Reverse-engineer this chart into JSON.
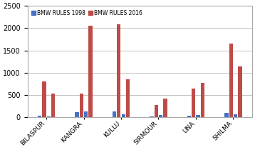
{
  "categories": [
    "BILASPUR",
    "KANGRA",
    "KULLU",
    "SIRMOUR",
    "UNA",
    "SHILMA"
  ],
  "bmw_1998_1": [
    35,
    120,
    130,
    20,
    35,
    100
  ],
  "bmw_2016_1": [
    800,
    530,
    2090,
    280,
    650,
    1650
  ],
  "bmw_1998_2": [
    20,
    130,
    60,
    45,
    55,
    65
  ],
  "bmw_2016_2": [
    530,
    2060,
    860,
    420,
    780,
    1140
  ],
  "color_1998": "#4472C4",
  "color_2016": "#BE4B48",
  "legend_1998": "BMW RULES 1998",
  "legend_2016": "BMW RULES 2016",
  "ylim": [
    0,
    2500
  ],
  "yticks": [
    0,
    500,
    1000,
    1500,
    2000,
    2500
  ],
  "bar_width": 0.1,
  "group_width": 0.55,
  "figsize": [
    3.58,
    2.1
  ],
  "dpi": 100
}
